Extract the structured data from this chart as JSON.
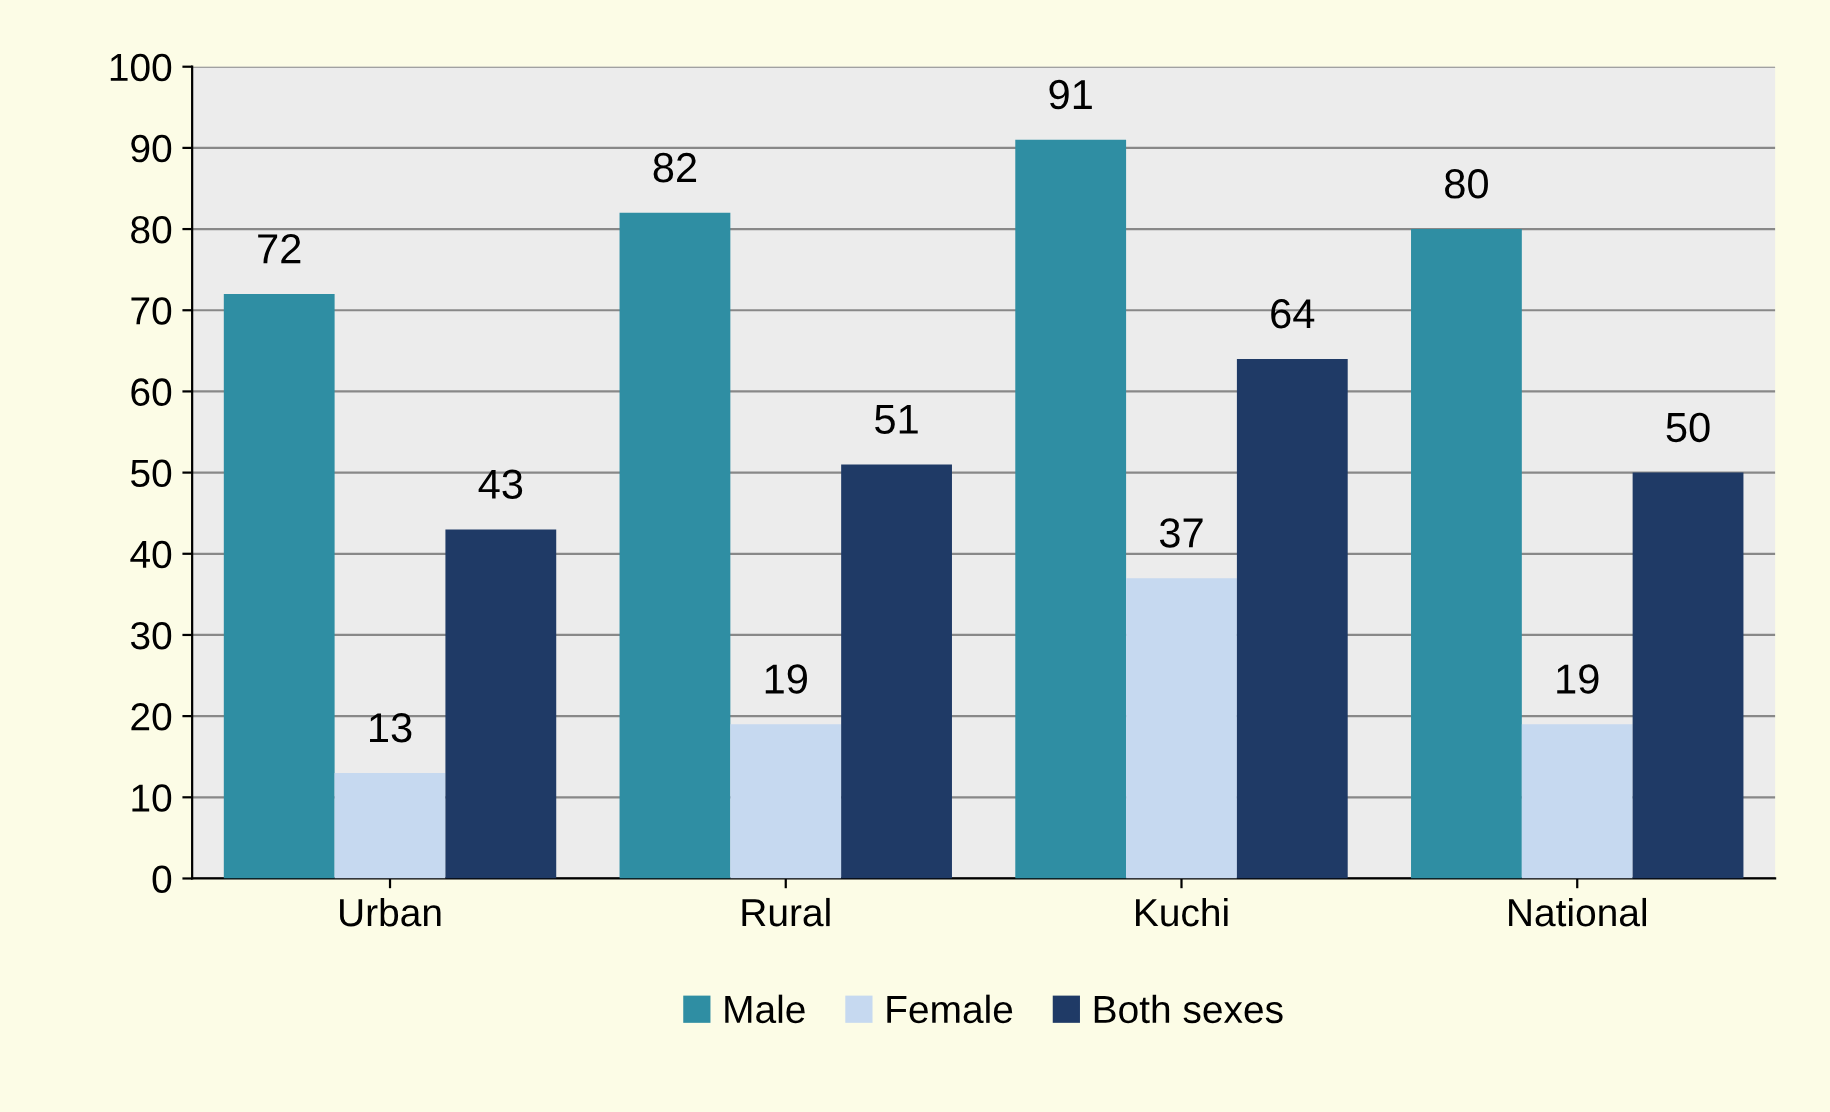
{
  "chart_data": {
    "type": "bar",
    "categories": [
      "Urban",
      "Rural",
      "Kuchi",
      "National"
    ],
    "series": [
      {
        "name": "Male",
        "color": "#2f8ea3",
        "values": [
          72,
          82,
          91,
          80
        ]
      },
      {
        "name": "Female",
        "color": "#c6d9f0",
        "values": [
          13,
          19,
          37,
          19
        ]
      },
      {
        "name": "Both sexes",
        "color": "#1f3a66",
        "values": [
          43,
          51,
          64,
          50
        ]
      }
    ],
    "ylim": [
      0,
      100
    ],
    "yticks": [
      0,
      10,
      20,
      30,
      40,
      50,
      60,
      70,
      80,
      90,
      100
    ],
    "grid": "y",
    "legend": "bottom",
    "data_labels": true
  }
}
